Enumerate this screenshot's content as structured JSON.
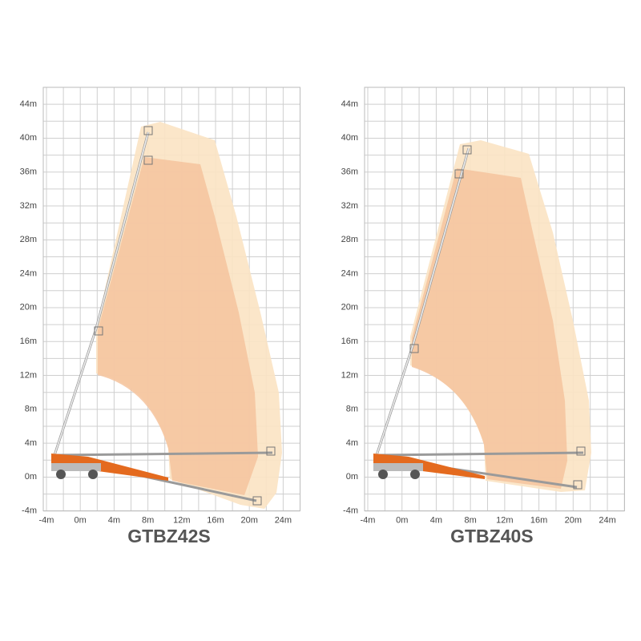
{
  "panels": [
    {
      "title": "GTBZ42S",
      "y_labels": [
        "44m",
        "40m",
        "36m",
        "32m",
        "28m",
        "24m",
        "20m",
        "16m",
        "12m",
        "8m",
        "4m",
        "0m",
        "-4m"
      ],
      "x_labels": [
        "-4m",
        "0m",
        "4m",
        "8m",
        "12m",
        "16m",
        "20m",
        "24m"
      ]
    },
    {
      "title": "GTBZ40S",
      "y_labels": [
        "44m",
        "40m",
        "36m",
        "32m",
        "28m",
        "24m",
        "20m",
        "16m",
        "12m",
        "8m",
        "4m",
        "0m",
        "-4m"
      ],
      "x_labels": [
        "-4m",
        "0m",
        "4m",
        "8m",
        "12m",
        "16m",
        "20m",
        "24m"
      ]
    }
  ]
}
